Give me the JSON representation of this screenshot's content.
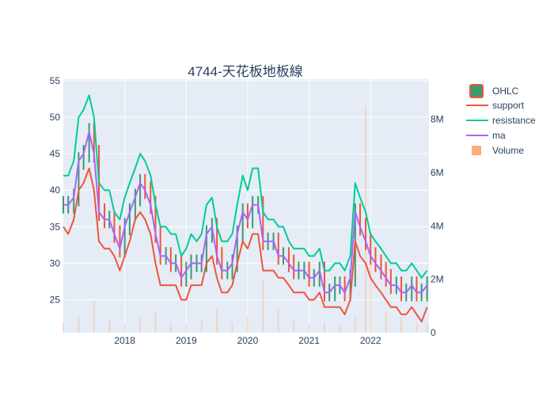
{
  "chart_data": {
    "type": "line",
    "title": "4744-天花板地板線",
    "x_tick_labels": [
      "2018",
      "2019",
      "2020",
      "2021",
      "2022"
    ],
    "y_tick_labels": [
      "25",
      "30",
      "35",
      "40",
      "45",
      "50",
      "55"
    ],
    "y2_tick_labels": [
      "0",
      "2M",
      "4M",
      "6M",
      "8M"
    ],
    "ylim": [
      20.5,
      55.2
    ],
    "y2lim": [
      0,
      9.5
    ],
    "xlim": [
      2017.0,
      2022.95
    ],
    "legend_placement": "top-right",
    "colors": {
      "ohlc_increasing": "#3d9970",
      "ohlc_decreasing": "#ef553b",
      "support": "#ef553b",
      "resistance": "#00cc96",
      "ma": "#ab63fa",
      "volume": "#fcab79",
      "plot_bg": "#e5ecf6"
    },
    "legend": {
      "ohlc": "OHLC",
      "support": "support",
      "resistance": "resistance",
      "ma": "ma",
      "volume": "Volume"
    },
    "series": [
      {
        "name": "ma",
        "x": [
          2017.0,
          2017.08,
          2017.17,
          2017.25,
          2017.33,
          2017.42,
          2017.5,
          2017.58,
          2017.67,
          2017.75,
          2017.83,
          2017.92,
          2018.0,
          2018.08,
          2018.17,
          2018.25,
          2018.33,
          2018.42,
          2018.5,
          2018.58,
          2018.67,
          2018.75,
          2018.83,
          2018.92,
          2019.0,
          2019.08,
          2019.17,
          2019.25,
          2019.33,
          2019.42,
          2019.5,
          2019.58,
          2019.67,
          2019.75,
          2019.83,
          2019.92,
          2020.0,
          2020.08,
          2020.17,
          2020.25,
          2020.33,
          2020.42,
          2020.5,
          2020.58,
          2020.67,
          2020.75,
          2020.83,
          2020.92,
          2021.0,
          2021.08,
          2021.17,
          2021.25,
          2021.33,
          2021.42,
          2021.5,
          2021.58,
          2021.67,
          2021.75,
          2021.83,
          2021.92,
          2022.0,
          2022.08,
          2022.17,
          2022.25,
          2022.33,
          2022.42,
          2022.5,
          2022.58,
          2022.67,
          2022.75,
          2022.83,
          2022.92
        ],
        "values": [
          38,
          38,
          39,
          44,
          45,
          48,
          45,
          37,
          36,
          36,
          34,
          32,
          35,
          37,
          39,
          41,
          40,
          38,
          34,
          31,
          31,
          30,
          30,
          28,
          29,
          30,
          30,
          30,
          34,
          35,
          31,
          29,
          29,
          30,
          34,
          37,
          36,
          38,
          38,
          33,
          33,
          33,
          31,
          31,
          30,
          29,
          29,
          29,
          28,
          28,
          29,
          26,
          26,
          27,
          27,
          26,
          28,
          37,
          35,
          33,
          31,
          30,
          29,
          28,
          27,
          27,
          26,
          26,
          27,
          26,
          26,
          27
        ]
      },
      {
        "name": "support",
        "x": [
          2017.0,
          2017.08,
          2017.17,
          2017.25,
          2017.33,
          2017.42,
          2017.5,
          2017.58,
          2017.67,
          2017.75,
          2017.83,
          2017.92,
          2018.0,
          2018.08,
          2018.17,
          2018.25,
          2018.33,
          2018.42,
          2018.5,
          2018.58,
          2018.67,
          2018.75,
          2018.83,
          2018.92,
          2019.0,
          2019.08,
          2019.17,
          2019.25,
          2019.33,
          2019.42,
          2019.5,
          2019.58,
          2019.67,
          2019.75,
          2019.83,
          2019.92,
          2020.0,
          2020.08,
          2020.17,
          2020.25,
          2020.33,
          2020.42,
          2020.5,
          2020.58,
          2020.67,
          2020.75,
          2020.83,
          2020.92,
          2021.0,
          2021.08,
          2021.17,
          2021.25,
          2021.33,
          2021.42,
          2021.5,
          2021.58,
          2021.67,
          2021.75,
          2021.83,
          2021.92,
          2022.0,
          2022.08,
          2022.17,
          2022.25,
          2022.33,
          2022.42,
          2022.5,
          2022.58,
          2022.67,
          2022.75,
          2022.83,
          2022.92
        ],
        "values": [
          35,
          34,
          36,
          40,
          41,
          43,
          40,
          33,
          32,
          32,
          31,
          29,
          31,
          33,
          36,
          37,
          36,
          34,
          30,
          27,
          27,
          27,
          27,
          25,
          25,
          27,
          27,
          27,
          30,
          31,
          28,
          26,
          26,
          27,
          30,
          33,
          32,
          34,
          34,
          29,
          29,
          29,
          28,
          28,
          27,
          26,
          26,
          26,
          25,
          25,
          26,
          24,
          24,
          24,
          24,
          23,
          25,
          33,
          31,
          30,
          28,
          27,
          26,
          25,
          24,
          24,
          23,
          23,
          24,
          23,
          22,
          24
        ]
      },
      {
        "name": "resistance",
        "x": [
          2017.0,
          2017.08,
          2017.17,
          2017.25,
          2017.33,
          2017.42,
          2017.5,
          2017.58,
          2017.67,
          2017.75,
          2017.83,
          2017.92,
          2018.0,
          2018.08,
          2018.17,
          2018.25,
          2018.33,
          2018.42,
          2018.5,
          2018.58,
          2018.67,
          2018.75,
          2018.83,
          2018.92,
          2019.0,
          2019.08,
          2019.17,
          2019.25,
          2019.33,
          2019.42,
          2019.5,
          2019.58,
          2019.67,
          2019.75,
          2019.83,
          2019.92,
          2020.0,
          2020.08,
          2020.17,
          2020.25,
          2020.33,
          2020.42,
          2020.5,
          2020.58,
          2020.67,
          2020.75,
          2020.83,
          2020.92,
          2021.0,
          2021.08,
          2021.17,
          2021.25,
          2021.33,
          2021.42,
          2021.5,
          2021.58,
          2021.67,
          2021.75,
          2021.83,
          2021.92,
          2022.0,
          2022.08,
          2022.17,
          2022.25,
          2022.33,
          2022.42,
          2022.5,
          2022.58,
          2022.67,
          2022.75,
          2022.83,
          2022.92
        ],
        "values": [
          42,
          42,
          44,
          50,
          51,
          53,
          50,
          41,
          40,
          40,
          37,
          36,
          39,
          41,
          43,
          45,
          44,
          42,
          38,
          35,
          35,
          34,
          34,
          31,
          32,
          34,
          33,
          34,
          38,
          39,
          35,
          33,
          33,
          34,
          38,
          42,
          40,
          43,
          43,
          37,
          36,
          36,
          35,
          35,
          33,
          32,
          32,
          32,
          31,
          31,
          32,
          29,
          29,
          30,
          30,
          29,
          31,
          41,
          39,
          37,
          34,
          33,
          32,
          31,
          30,
          30,
          29,
          29,
          30,
          29,
          28,
          29
        ]
      },
      {
        "name": "Volume",
        "x": [
          2017.0,
          2017.25,
          2017.5,
          2017.75,
          2018.0,
          2018.25,
          2018.5,
          2018.75,
          2019.0,
          2019.25,
          2019.5,
          2019.75,
          2020.0,
          2020.25,
          2020.5,
          2020.75,
          2021.0,
          2021.25,
          2021.5,
          2021.75,
          2021.92,
          2022.0,
          2022.25,
          2022.5,
          2022.75,
          2022.92
        ],
        "values": [
          0.4,
          0.6,
          1.2,
          0.5,
          0.3,
          0.6,
          0.8,
          0.4,
          0.3,
          0.5,
          0.9,
          0.4,
          0.6,
          2.0,
          0.9,
          0.5,
          0.3,
          0.4,
          0.3,
          0.6,
          8.5,
          3.0,
          0.8,
          0.6,
          0.4,
          0.3
        ]
      }
    ]
  }
}
